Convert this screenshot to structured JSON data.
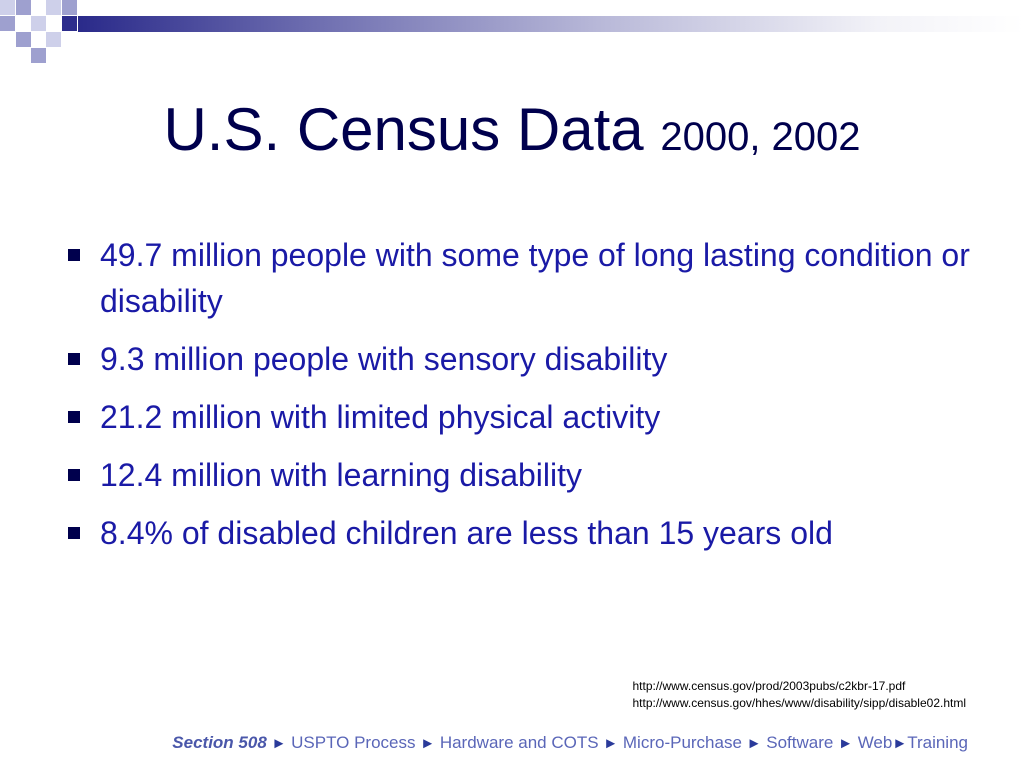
{
  "slide": {
    "title_main": "U.S. Census Data ",
    "title_small": "2000, 2002",
    "bullets": [
      "49.7 million people with some type of long lasting condition or disability",
      "9.3 million people with sensory disability",
      "21.2 million with limited physical activity",
      "12.4 million with learning disability",
      "8.4% of disabled children are less than 15 years old"
    ],
    "sources": [
      "http://www.census.gov/prod/2003pubs/c2kbr-17.pdf",
      "http://www.census.gov/hhes/www/disability/sipp/disable02.html"
    ]
  },
  "footer": {
    "section_label": "Section 508",
    "separator": "►",
    "items": [
      "USPTO Process",
      "Hardware and COTS",
      "Micro-Purchase",
      "Software",
      "Web",
      "Training"
    ]
  },
  "colors": {
    "title": "#00004d",
    "bullet_text": "#1a1aa6",
    "bullet_marker": "#00004d",
    "footer_text": "#5a66b8",
    "header_band_start": "#2a2a8a"
  }
}
